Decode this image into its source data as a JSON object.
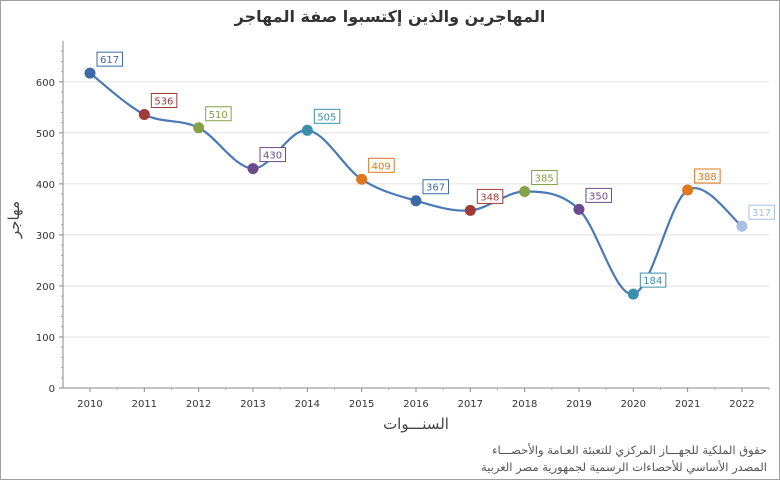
{
  "chart_data": {
    "type": "line",
    "title": "المهاجرين والذين إكتسبوا صفة المهاجر",
    "xlabel": "السنـــوات",
    "ylabel": "مهاجر",
    "categories": [
      "2010",
      "2011",
      "2012",
      "2013",
      "2014",
      "2015",
      "2016",
      "2017",
      "2018",
      "2019",
      "2020",
      "2021",
      "2022"
    ],
    "values": [
      617,
      536,
      510,
      430,
      505,
      409,
      367,
      348,
      385,
      350,
      184,
      388,
      317
    ],
    "point_colors": [
      "#3c6ba3",
      "#a33a3a",
      "#86a045",
      "#6a4c8c",
      "#3b8fa9",
      "#e0761d",
      "#3c6ba3",
      "#a33a3a",
      "#86a045",
      "#6a4c8c",
      "#3b8fa9",
      "#e0761d",
      "#a9c0e2"
    ],
    "line_color": "#4a7ab5",
    "ylim": [
      0,
      680
    ],
    "yticks": [
      0,
      100,
      200,
      300,
      400,
      500,
      600
    ],
    "grid": true,
    "smooth": true,
    "data_labels": true
  },
  "footer": {
    "line1": "حقوق الملكية للجهـــاز المركزي للتعبئة العـامة والأحصـــاء",
    "line2": "المصدر الأساسي للأحصاءات الرسمية لجمهورية مصر العربية"
  }
}
